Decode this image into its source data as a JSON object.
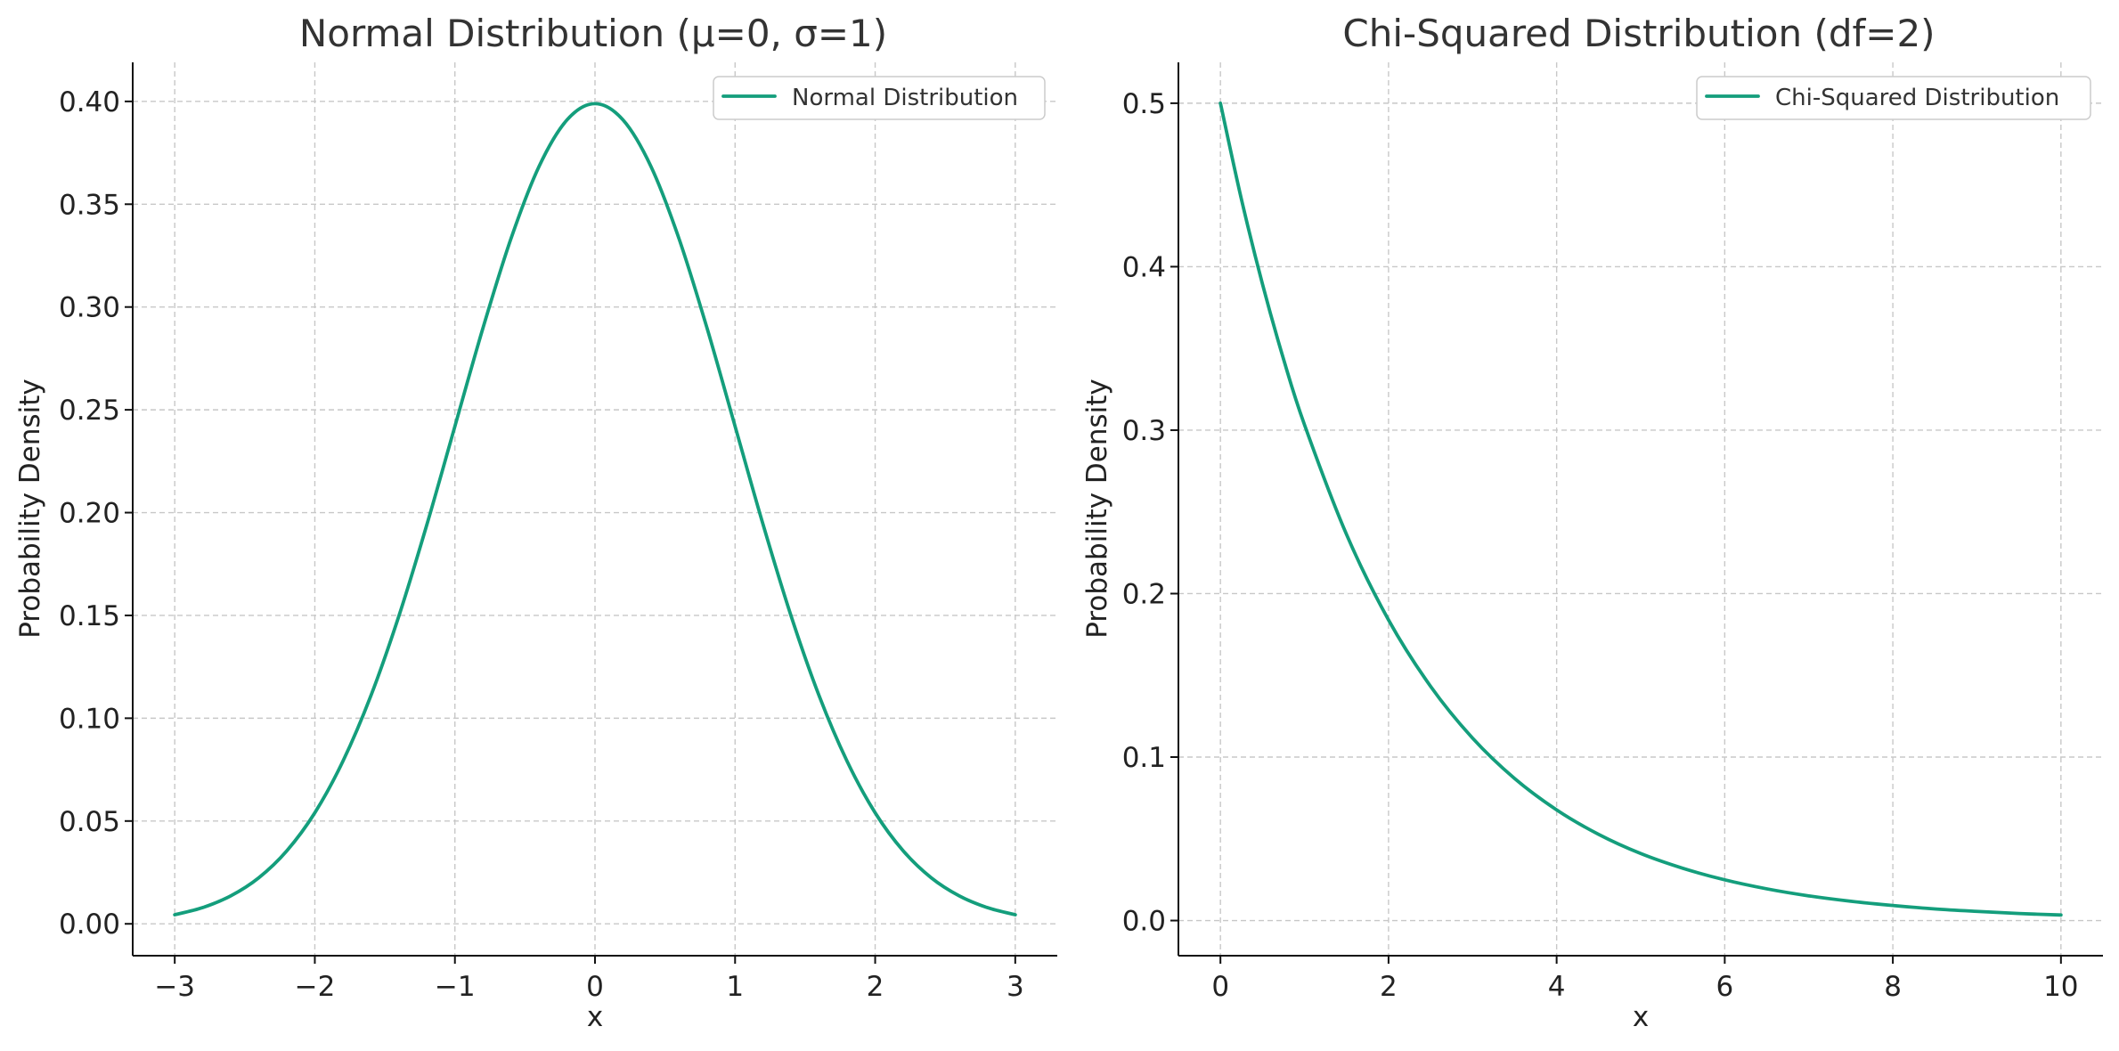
{
  "figure": {
    "background": "#ffffff",
    "line_color": "#149e7c"
  },
  "chart_data": [
    {
      "type": "line",
      "title": "Normal Distribution (μ=0, σ=1)",
      "xlabel": "x",
      "ylabel": "Probability Density",
      "xlim": [
        -3.3,
        3.3
      ],
      "ylim": [
        -0.0155,
        0.419
      ],
      "xticks": [
        -3,
        -2,
        -1,
        0,
        1,
        2,
        3
      ],
      "xtick_labels": [
        "−3",
        "−2",
        "−1",
        "0",
        "1",
        "2",
        "3"
      ],
      "yticks": [
        0.0,
        0.05,
        0.1,
        0.15,
        0.2,
        0.25,
        0.3,
        0.35,
        0.4
      ],
      "ytick_labels": [
        "0.00",
        "0.05",
        "0.10",
        "0.15",
        "0.20",
        "0.25",
        "0.30",
        "0.35",
        "0.40"
      ],
      "grid": true,
      "legend_position": "top-right",
      "series": [
        {
          "name": "Normal Distribution",
          "x": [
            -3.0,
            -2.8,
            -2.6,
            -2.4,
            -2.2,
            -2.0,
            -1.8,
            -1.6,
            -1.4,
            -1.2,
            -1.0,
            -0.8,
            -0.6,
            -0.4,
            -0.2,
            0.0,
            0.2,
            0.4,
            0.6,
            0.8,
            1.0,
            1.2,
            1.4,
            1.6,
            1.8,
            2.0,
            2.2,
            2.4,
            2.6,
            2.8,
            3.0
          ],
          "y": [
            0.0044,
            0.0079,
            0.0136,
            0.0224,
            0.0355,
            0.054,
            0.079,
            0.1109,
            0.1497,
            0.1942,
            0.242,
            0.2897,
            0.3332,
            0.3683,
            0.391,
            0.3989,
            0.391,
            0.3683,
            0.3332,
            0.2897,
            0.242,
            0.1942,
            0.1497,
            0.1109,
            0.079,
            0.054,
            0.0355,
            0.0224,
            0.0136,
            0.0079,
            0.0044
          ]
        }
      ]
    },
    {
      "type": "line",
      "title": "Chi-Squared Distribution (df=2)",
      "xlabel": "x",
      "ylabel": "Probability Density",
      "xlim": [
        -0.5,
        10.5
      ],
      "ylim": [
        -0.0215,
        0.525
      ],
      "xticks": [
        0,
        2,
        4,
        6,
        8,
        10
      ],
      "xtick_labels": [
        "0",
        "2",
        "4",
        "6",
        "8",
        "10"
      ],
      "yticks": [
        0.0,
        0.1,
        0.2,
        0.3,
        0.4,
        0.5
      ],
      "ytick_labels": [
        "0.0",
        "0.1",
        "0.2",
        "0.3",
        "0.4",
        "0.5"
      ],
      "grid": true,
      "legend_position": "top-right",
      "series": [
        {
          "name": "Chi-Squared Distribution",
          "x": [
            0.0,
            0.25,
            0.5,
            0.75,
            1.0,
            1.5,
            2.0,
            2.5,
            3.0,
            3.5,
            4.0,
            4.5,
            5.0,
            5.5,
            6.0,
            6.5,
            7.0,
            7.5,
            8.0,
            8.5,
            9.0,
            9.5,
            10.0
          ],
          "y": [
            0.5,
            0.4412,
            0.3894,
            0.3436,
            0.3033,
            0.2362,
            0.1839,
            0.1433,
            0.1116,
            0.0869,
            0.0677,
            0.0527,
            0.041,
            0.032,
            0.0249,
            0.0194,
            0.0151,
            0.0118,
            0.0092,
            0.0071,
            0.0056,
            0.0043,
            0.0034
          ]
        }
      ]
    }
  ]
}
